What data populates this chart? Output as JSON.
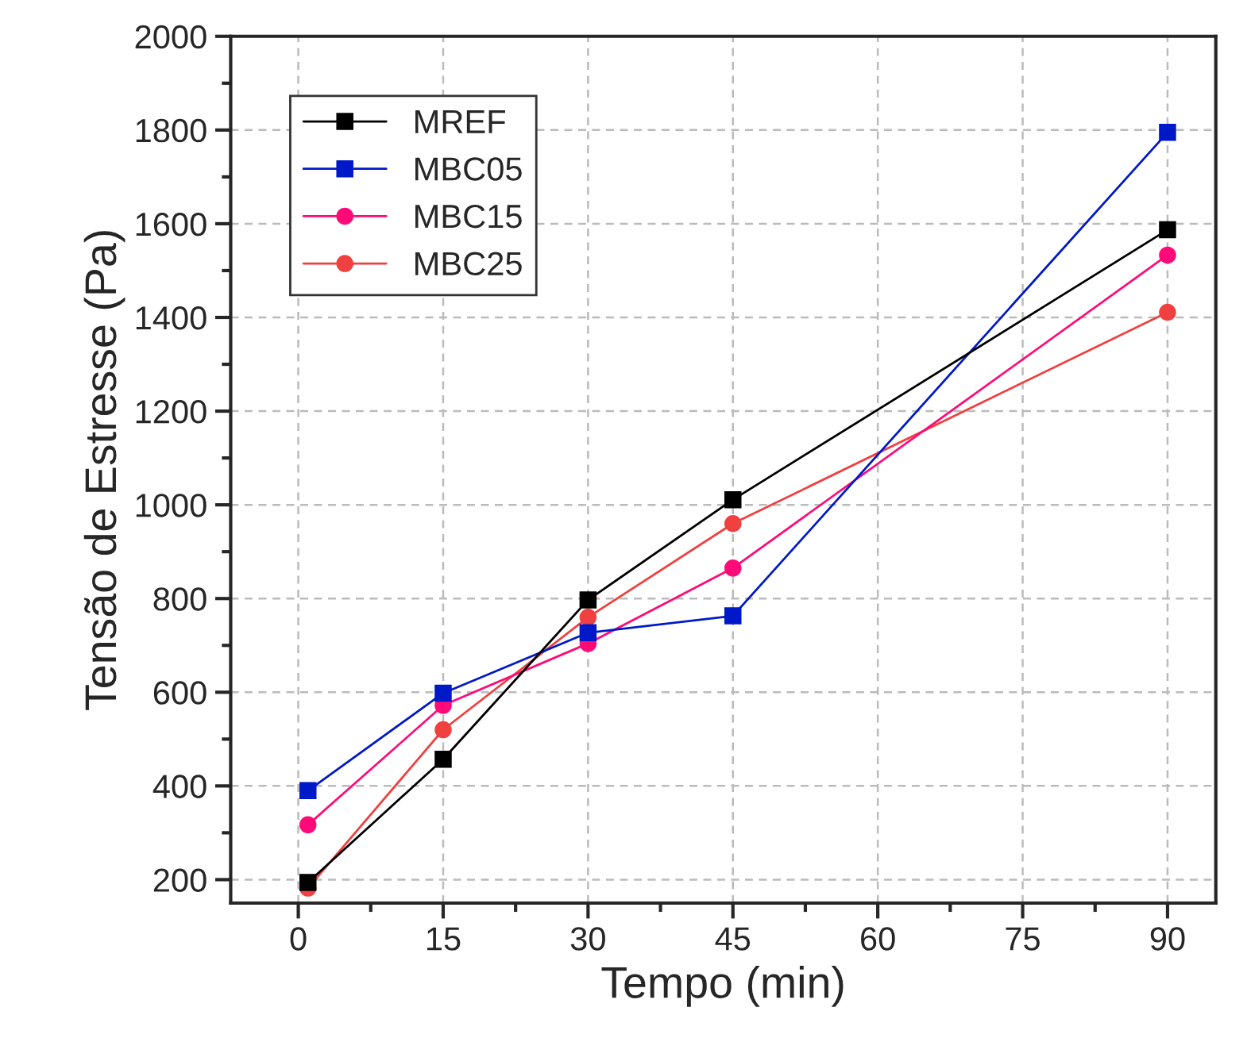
{
  "chart_data": {
    "type": "line",
    "xlabel": "Tempo (min)",
    "ylabel": "Tensão de Estresse (Pa)",
    "x": [
      1,
      15,
      30,
      45,
      90
    ],
    "series": [
      {
        "name": "MREF",
        "color": "#000000",
        "marker": "square",
        "values": [
          194,
          457,
          797,
          1011,
          1587
        ]
      },
      {
        "name": "MBC05",
        "color": "#0019c8",
        "marker": "square",
        "values": [
          390,
          598,
          727,
          763,
          1795
        ]
      },
      {
        "name": "MBC15",
        "color": "#ff0a78",
        "marker": "circle",
        "values": [
          317,
          572,
          704,
          865,
          1533
        ]
      },
      {
        "name": "MBC25",
        "color": "#f04040",
        "marker": "circle",
        "values": [
          182,
          520,
          760,
          960,
          1411
        ]
      }
    ],
    "xlim": [
      -7,
      95
    ],
    "xticks": [
      0,
      15,
      30,
      45,
      60,
      75,
      90
    ],
    "ylim": [
      150,
      2000
    ],
    "yticks": [
      200,
      400,
      600,
      800,
      1000,
      1200,
      1400,
      1600,
      1800,
      2000
    ],
    "grid": true,
    "legend": "top left",
    "line_style": "solid"
  }
}
